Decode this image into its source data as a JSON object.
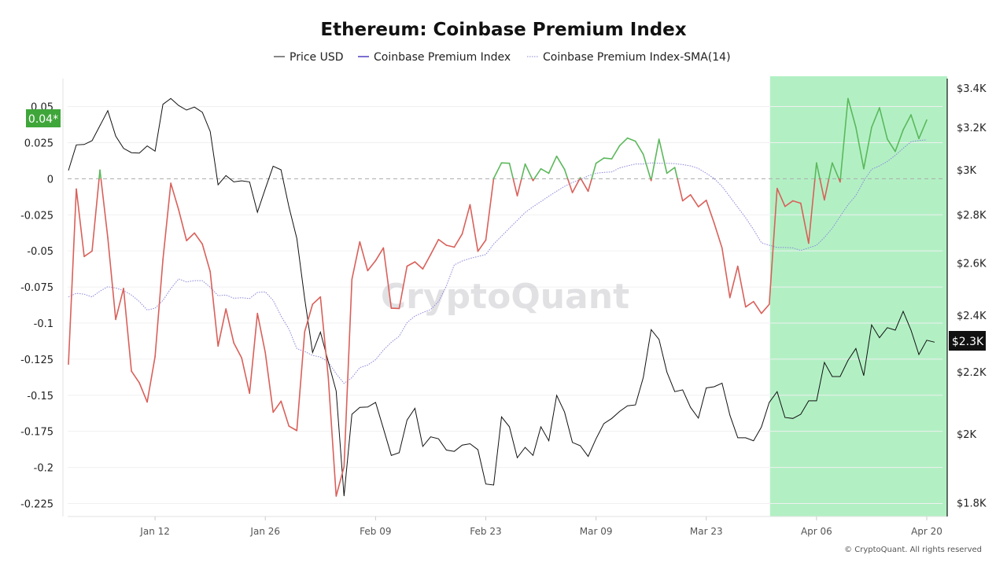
{
  "chart_data": {
    "type": "line",
    "title": "Ethereum: Coinbase Premium Index",
    "legend": [
      "Price USD",
      "Coinbase Premium Index",
      "Coinbase Premium Index-SMA(14)"
    ],
    "legend_position": "top-center",
    "grid": true,
    "colors": {
      "price": "#111111",
      "index_legend": "#7b6fd0",
      "index_positive": "#5cb85c",
      "index_negative": "#d9605a",
      "sma": "#8a86d8",
      "highlight": "#b2f0c4",
      "zero_line": "#aaaaaa",
      "badge_index": "#3fa63a",
      "badge_price": "#111111"
    },
    "y_left": {
      "ticks": [
        0.05,
        0.025,
        0,
        -0.025,
        -0.05,
        -0.075,
        -0.1,
        -0.125,
        -0.15,
        -0.175,
        -0.2,
        -0.225
      ],
      "tick_labels": [
        "0.05",
        "0.025",
        "0",
        "-0.025",
        "-0.05",
        "-0.075",
        "-0.1",
        "-0.125",
        "-0.15",
        "-0.175",
        "-0.2",
        "-0.225"
      ],
      "ylim": [
        -0.234,
        0.071
      ]
    },
    "y_right": {
      "scale": "log",
      "ticks": [
        3400,
        3200,
        3000,
        2800,
        2600,
        2400,
        2200,
        2000,
        1800
      ],
      "tick_labels": [
        "$3.4K",
        "$3.2K",
        "$3K",
        "$2.8K",
        "$2.6K",
        "$2.4K",
        "$2.2K",
        "$2K",
        "$1.8K"
      ],
      "ylim": [
        1762,
        3462
      ]
    },
    "x_ticks": [
      {
        "date": "Jan 12",
        "label": "Jan 12"
      },
      {
        "date": "Jan 26",
        "label": "Jan 26"
      },
      {
        "date": "Feb 09",
        "label": "Feb 09"
      },
      {
        "date": "Feb 23",
        "label": "Feb 23"
      },
      {
        "date": "Mar 09",
        "label": "Mar 09"
      },
      {
        "date": "Mar 23",
        "label": "Mar 23"
      },
      {
        "date": "Apr 06",
        "label": "Apr 06"
      },
      {
        "date": "Apr 20",
        "label": "Apr 20"
      }
    ],
    "highlight_range": [
      "Mar 31",
      "Apr 21"
    ],
    "x": [
      "Jan 01",
      "Jan 02",
      "Jan 03",
      "Jan 04",
      "Jan 05",
      "Jan 06",
      "Jan 07",
      "Jan 08",
      "Jan 09",
      "Jan 10",
      "Jan 11",
      "Jan 12",
      "Jan 13",
      "Jan 14",
      "Jan 15",
      "Jan 16",
      "Jan 17",
      "Jan 18",
      "Jan 19",
      "Jan 20",
      "Jan 21",
      "Jan 22",
      "Jan 23",
      "Jan 24",
      "Jan 25",
      "Jan 26",
      "Jan 27",
      "Jan 28",
      "Jan 29",
      "Jan 30",
      "Jan 31",
      "Feb 01",
      "Feb 02",
      "Feb 03",
      "Feb 04",
      "Feb 05",
      "Feb 06",
      "Feb 07",
      "Feb 08",
      "Feb 09",
      "Feb 10",
      "Feb 11",
      "Feb 12",
      "Feb 13",
      "Feb 14",
      "Feb 15",
      "Feb 16",
      "Feb 17",
      "Feb 18",
      "Feb 19",
      "Feb 20",
      "Feb 21",
      "Feb 22",
      "Feb 23",
      "Feb 24",
      "Feb 25",
      "Feb 26",
      "Feb 27",
      "Feb 28",
      "Mar 01",
      "Mar 02",
      "Mar 03",
      "Mar 04",
      "Mar 05",
      "Mar 06",
      "Mar 07",
      "Mar 08",
      "Mar 09",
      "Mar 10",
      "Mar 11",
      "Mar 12",
      "Mar 13",
      "Mar 14",
      "Mar 15",
      "Mar 16",
      "Mar 17",
      "Mar 18",
      "Mar 19",
      "Mar 20",
      "Mar 21",
      "Mar 22",
      "Mar 23",
      "Mar 24",
      "Mar 25",
      "Mar 26",
      "Mar 27",
      "Mar 28",
      "Mar 29",
      "Mar 30",
      "Mar 31",
      "Apr 01",
      "Apr 02",
      "Apr 03",
      "Apr 04",
      "Apr 05",
      "Apr 06",
      "Apr 07",
      "Apr 08",
      "Apr 09",
      "Apr 10",
      "Apr 11",
      "Apr 12",
      "Apr 13",
      "Apr 14",
      "Apr 15",
      "Apr 16",
      "Apr 17",
      "Apr 18",
      "Apr 19",
      "Apr 20",
      "Apr 21"
    ],
    "series": [
      {
        "name": "Price USD",
        "axis": "right",
        "values": [
          2996,
          3116,
          3118,
          3136,
          3209,
          3284,
          3158,
          3099,
          3079,
          3077,
          3111,
          3086,
          3316,
          3346,
          3310,
          3287,
          3302,
          3276,
          3181,
          2931,
          2973,
          2944,
          2949,
          2944,
          2810,
          2913,
          3016,
          2999,
          2833,
          2699,
          2461,
          2266,
          2338,
          2234,
          2136,
          1818,
          2061,
          2083,
          2084,
          2099,
          2016,
          1935,
          1943,
          2043,
          2080,
          1962,
          1991,
          1985,
          1951,
          1947,
          1966,
          1970,
          1952,
          1852,
          1849,
          2053,
          2022,
          1928,
          1959,
          1935,
          2022,
          1979,
          2122,
          2068,
          1974,
          1964,
          1932,
          1985,
          2032,
          2048,
          2070,
          2088,
          2091,
          2181,
          2347,
          2312,
          2199,
          2134,
          2140,
          2083,
          2049,
          2146,
          2150,
          2162,
          2058,
          1988,
          1988,
          1979,
          2021,
          2099,
          2134,
          2051,
          2048,
          2061,
          2104,
          2104,
          2232,
          2184,
          2184,
          2239,
          2280,
          2187,
          2364,
          2318,
          2354,
          2345,
          2414,
          2345,
          2259,
          2309,
          2302
        ]
      },
      {
        "name": "Coinbase Premium Index",
        "axis": "left",
        "values": [
          -0.1285,
          -0.0071,
          -0.0539,
          -0.0501,
          0.006,
          -0.041,
          -0.0975,
          -0.076,
          -0.1333,
          -0.1414,
          -0.1547,
          -0.1233,
          -0.056,
          -0.0031,
          -0.0216,
          -0.0429,
          -0.0376,
          -0.0452,
          -0.0643,
          -0.116,
          -0.0902,
          -0.1138,
          -0.1242,
          -0.1487,
          -0.0933,
          -0.1205,
          -0.1618,
          -0.1541,
          -0.1714,
          -0.1745,
          -0.106,
          -0.087,
          -0.0819,
          -0.1378,
          -0.2199,
          -0.1995,
          -0.0697,
          -0.0437,
          -0.0637,
          -0.0568,
          -0.0479,
          -0.0897,
          -0.0899,
          -0.0606,
          -0.0576,
          -0.0625,
          -0.0525,
          -0.0421,
          -0.0461,
          -0.0474,
          -0.0383,
          -0.018,
          -0.0503,
          -0.0425,
          0.0002,
          0.011,
          0.0107,
          -0.0118,
          0.0102,
          -0.0013,
          0.0069,
          0.0038,
          0.0156,
          0.0065,
          -0.0096,
          0.0007,
          -0.0087,
          0.0107,
          0.0143,
          0.0138,
          0.0229,
          0.0282,
          0.026,
          0.0169,
          -0.0013,
          0.0274,
          0.0038,
          0.0078,
          -0.0153,
          -0.0111,
          -0.0194,
          -0.0149,
          -0.0307,
          -0.0479,
          -0.0824,
          -0.0606,
          -0.0888,
          -0.0851,
          -0.0933,
          -0.087,
          -0.0067,
          -0.0192,
          -0.0153,
          -0.017,
          -0.0447,
          0.011,
          -0.0147,
          0.011,
          -0.0022,
          0.0556,
          0.0356,
          0.0069,
          0.0356,
          0.0492,
          0.0274,
          0.0189,
          0.0338,
          0.0443,
          0.0278,
          0.0407,
          null
        ]
      },
      {
        "name": "Coinbase Premium Index-SMA(14)",
        "axis": "left",
        "values": [
          -0.0819,
          -0.0794,
          -0.08,
          -0.0819,
          -0.0779,
          -0.0748,
          -0.0757,
          -0.0775,
          -0.0806,
          -0.0851,
          -0.091,
          -0.0897,
          -0.0843,
          -0.0761,
          -0.0694,
          -0.0715,
          -0.0706,
          -0.0706,
          -0.0752,
          -0.081,
          -0.0806,
          -0.0828,
          -0.0824,
          -0.083,
          -0.0788,
          -0.0784,
          -0.0843,
          -0.0951,
          -0.1042,
          -0.1177,
          -0.1197,
          -0.1224,
          -0.1236,
          -0.1269,
          -0.1351,
          -0.1418,
          -0.1378,
          -0.1309,
          -0.1291,
          -0.1254,
          -0.1187,
          -0.1133,
          -0.1091,
          -0.0997,
          -0.0951,
          -0.0928,
          -0.0906,
          -0.0851,
          -0.0743,
          -0.0597,
          -0.057,
          -0.0552,
          -0.0539,
          -0.0525,
          -0.0452,
          -0.0398,
          -0.0343,
          -0.0289,
          -0.0234,
          -0.0194,
          -0.0158,
          -0.0121,
          -0.0086,
          -0.0053,
          -0.0026,
          -0.0007,
          0.002,
          0.0038,
          0.0044,
          0.0047,
          0.0075,
          0.0089,
          0.0102,
          0.0102,
          0.011,
          0.0107,
          0.0107,
          0.0105,
          0.0098,
          0.0089,
          0.0071,
          0.0038,
          0.0002,
          -0.0053,
          -0.0125,
          -0.0198,
          -0.0271,
          -0.0352,
          -0.0443,
          -0.0461,
          -0.0476,
          -0.0476,
          -0.0479,
          -0.0497,
          -0.0479,
          -0.0461,
          -0.0407,
          -0.0343,
          -0.0261,
          -0.018,
          -0.0116,
          -0.0016,
          0.0065,
          0.0089,
          0.012,
          0.0162,
          0.0211,
          0.0256,
          0.0265,
          0.027,
          null
        ]
      }
    ],
    "last_value_badges": {
      "index": "0.04*",
      "price": "$2.3K"
    },
    "watermark": "CryptoQuant",
    "copyright": "© CryptoQuant. All rights reserved"
  }
}
